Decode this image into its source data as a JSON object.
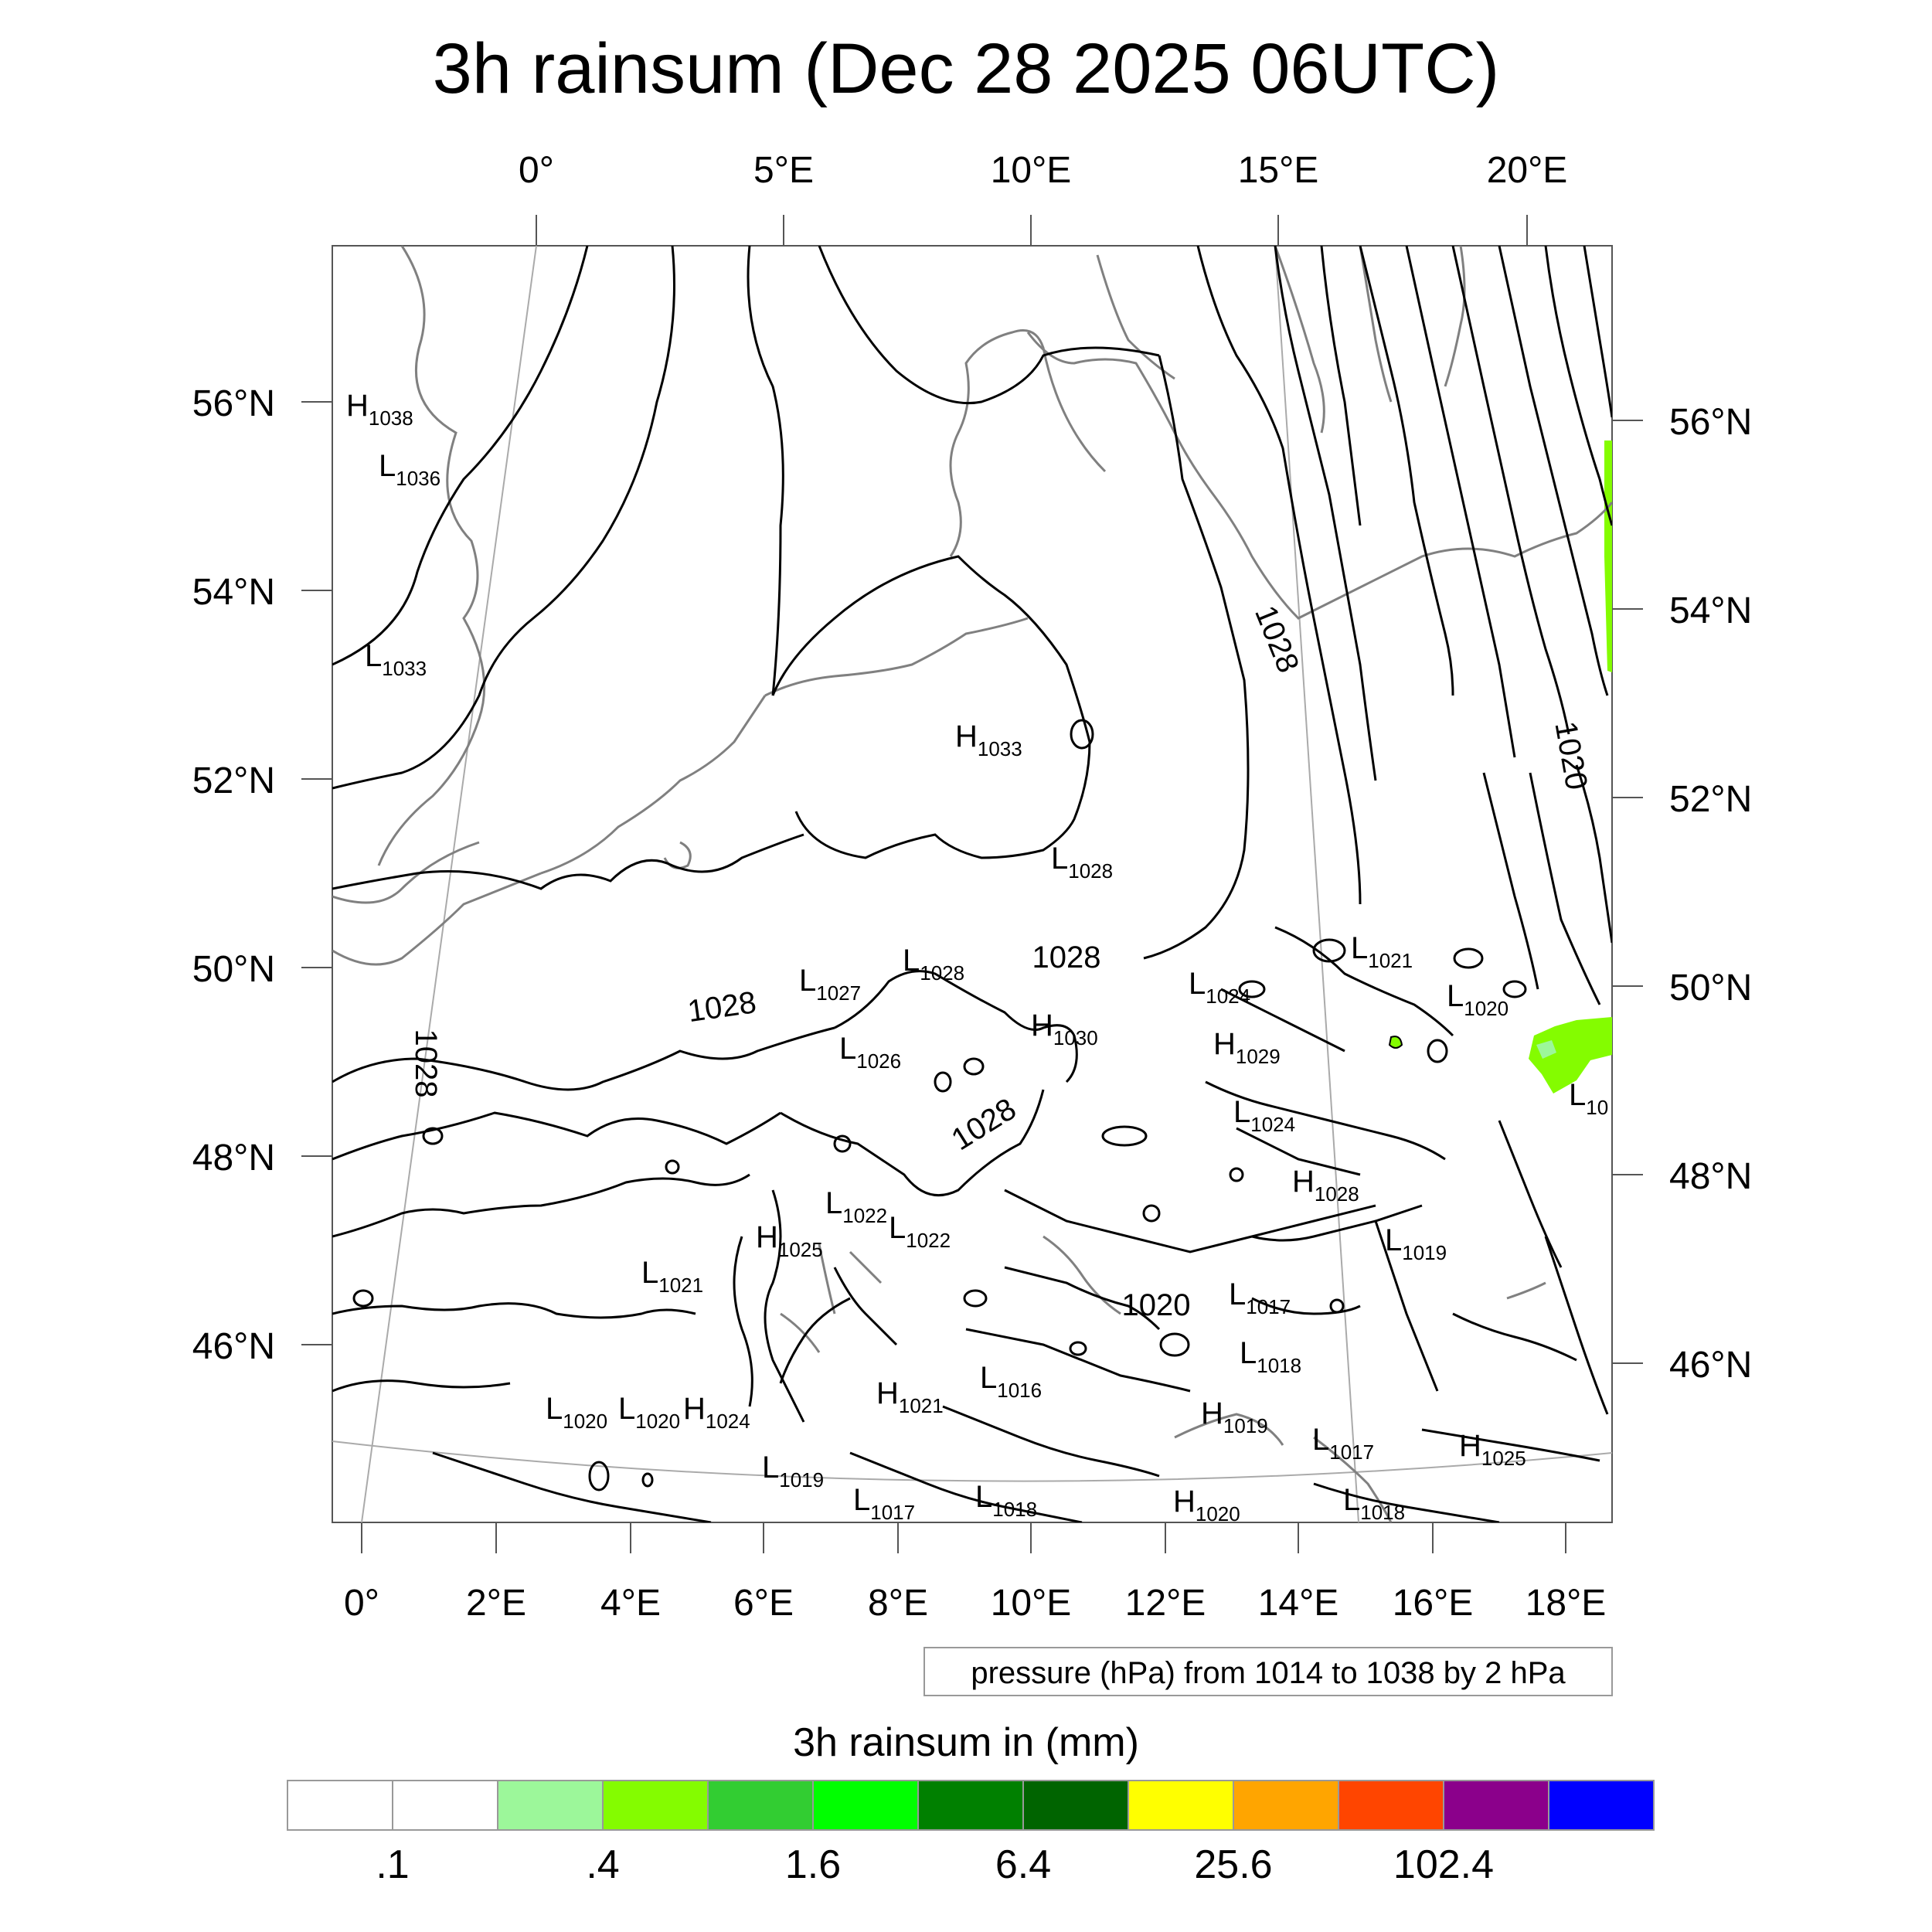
{
  "title": "3h rainsum (Dec 28 2025 06UTC)",
  "top_longitude_labels": [
    "0°",
    "5°E",
    "10°E",
    "15°E",
    "20°E"
  ],
  "bottom_longitude_labels": [
    "0°",
    "2°E",
    "4°E",
    "6°E",
    "8°E",
    "10°E",
    "12°E",
    "14°E",
    "16°E",
    "18°E"
  ],
  "left_latitude_labels": [
    "56°N",
    "54°N",
    "52°N",
    "50°N",
    "48°N",
    "46°N"
  ],
  "right_latitude_labels": [
    "56°N",
    "54°N",
    "52°N",
    "50°N",
    "48°N",
    "46°N"
  ],
  "pressure_centers": [
    {
      "type": "H",
      "value": "1038"
    },
    {
      "type": "L",
      "value": "1036"
    },
    {
      "type": "L",
      "value": "1033"
    },
    {
      "type": "H",
      "value": "1033"
    },
    {
      "type": "L",
      "value": "1028"
    },
    {
      "type": "L",
      "value": "1021"
    },
    {
      "type": "L",
      "value": "1027"
    },
    {
      "type": "L",
      "value": "1028"
    },
    {
      "type": "L",
      "value": "1024"
    },
    {
      "type": "L",
      "value": "1020"
    },
    {
      "type": "H",
      "value": "1030"
    },
    {
      "type": "L",
      "value": "1026"
    },
    {
      "type": "H",
      "value": "1029"
    },
    {
      "type": "L",
      "value": "1024"
    },
    {
      "type": "H",
      "value": "1028"
    },
    {
      "type": "L",
      "value": "1022"
    },
    {
      "type": "L",
      "value": "1022"
    },
    {
      "type": "H",
      "value": "1025"
    },
    {
      "type": "L",
      "value": "1019"
    },
    {
      "type": "L",
      "value": "1021"
    },
    {
      "type": "L",
      "value": "1017"
    },
    {
      "type": "L",
      "value": "1018"
    },
    {
      "type": "L",
      "value": "1016"
    },
    {
      "type": "L",
      "value": "1020"
    },
    {
      "type": "L",
      "value": "1020"
    },
    {
      "type": "H",
      "value": "1024"
    },
    {
      "type": "H",
      "value": "1021"
    },
    {
      "type": "H",
      "value": "1019"
    },
    {
      "type": "L",
      "value": "1017"
    },
    {
      "type": "H",
      "value": "1025"
    },
    {
      "type": "L",
      "value": "1019"
    },
    {
      "type": "L",
      "value": "1017"
    },
    {
      "type": "L",
      "value": "1018"
    },
    {
      "type": "H",
      "value": "1020"
    },
    {
      "type": "L",
      "value": "1018"
    },
    {
      "type": "L",
      "value": "10"
    }
  ],
  "isobar_labels": [
    "1028",
    "1028",
    "1028",
    "1028",
    "1028",
    "1020",
    "1020"
  ],
  "contour_info": "pressure (hPa) from 1014 to 1038 by 2 hPa",
  "colorbar": {
    "title": "3h rainsum in (mm)",
    "colors": [
      "#ffffff",
      "#ffffff",
      "#9cf79a",
      "#84fc00",
      "#32cd32",
      "#00ff00",
      "#008000",
      "#006400",
      "#ffff00",
      "#ffa500",
      "#ff4500",
      "#8b008b",
      "#0000ff"
    ],
    "labels": [
      ".1",
      ".4",
      "1.6",
      "6.4",
      "25.6",
      "102.4"
    ]
  },
  "precip_color": "#84fc00"
}
